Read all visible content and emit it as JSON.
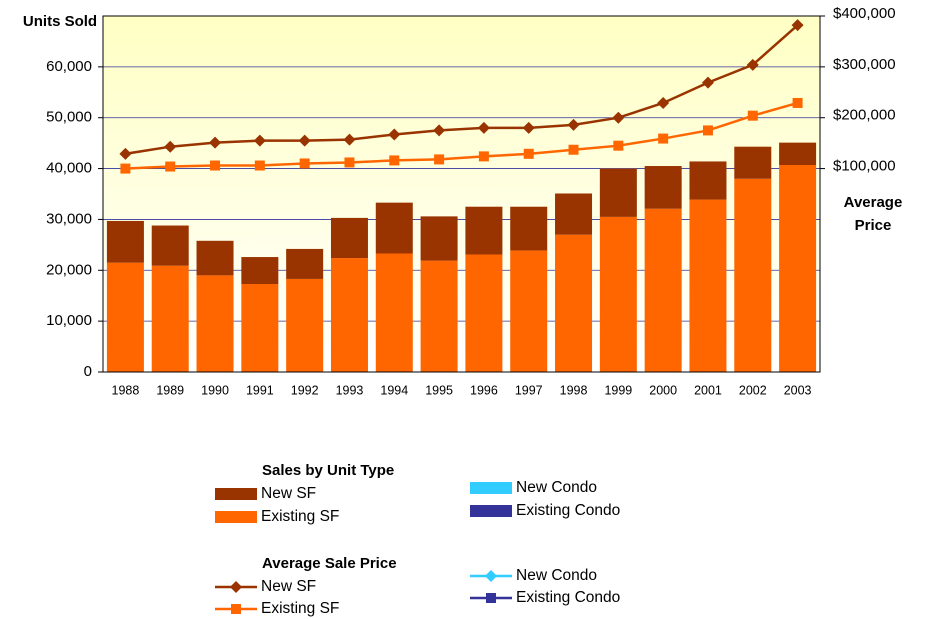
{
  "chart_data": {
    "type": "bar_line",
    "y_label": "Units Sold",
    "y2_label_lines": [
      "Average",
      "Price"
    ],
    "bar_legend_title": "Sales by Unit Type",
    "line_legend_title": "Average Sale Price",
    "categories": [
      "1988",
      "1989",
      "1990",
      "1991",
      "1992",
      "1993",
      "1994",
      "1995",
      "1996",
      "1997",
      "1998",
      "1999",
      "2000",
      "2001",
      "2002",
      "2003"
    ],
    "ylim": [
      0,
      70000
    ],
    "yticks": [
      {
        "value": 0,
        "label": "0"
      },
      {
        "value": 10000,
        "label": "10,000"
      },
      {
        "value": 20000,
        "label": "20,000"
      },
      {
        "value": 30000,
        "label": "30,000"
      },
      {
        "value": 40000,
        "label": "40,000"
      },
      {
        "value": 50000,
        "label": "50,000"
      },
      {
        "value": 60000,
        "label": "60,000"
      }
    ],
    "y2lim": [
      -300000,
      400000
    ],
    "y2ticks": [
      {
        "value": 100000,
        "label": "$100,000"
      },
      {
        "value": 200000,
        "label": "$200,000"
      },
      {
        "value": 300000,
        "label": "$300,000"
      },
      {
        "value": 400000,
        "label": "$400,000"
      }
    ],
    "grid": true,
    "series": [
      {
        "name": "New SF",
        "kind": "bar",
        "color": "#993300",
        "values": [
          8200,
          7900,
          6800,
          5300,
          5900,
          7900,
          10000,
          8700,
          9400,
          8600,
          8100,
          9500,
          8400,
          7500,
          6300,
          4400
        ]
      },
      {
        "name": "Existing SF",
        "kind": "bar",
        "color": "#ff6600",
        "values": [
          21500,
          20900,
          19000,
          17300,
          18300,
          22400,
          23300,
          21900,
          23100,
          23900,
          27000,
          30500,
          32100,
          33900,
          38000,
          40700
        ]
      },
      {
        "name": "New Condo",
        "kind": "bar",
        "color": "#33ccff",
        "values": [
          null,
          null,
          null,
          null,
          null,
          null,
          null,
          null,
          null,
          null,
          null,
          null,
          null,
          null,
          null,
          null
        ]
      },
      {
        "name": "Existing Condo",
        "kind": "bar",
        "color": "#333399",
        "values": [
          null,
          null,
          null,
          null,
          null,
          null,
          null,
          null,
          null,
          null,
          null,
          null,
          null,
          null,
          null,
          null
        ]
      },
      {
        "name": "New SF",
        "kind": "line",
        "axis": "y2",
        "marker": "diamond",
        "color": "#993300",
        "values": [
          129000,
          143000,
          151000,
          155000,
          155000,
          157000,
          167000,
          175000,
          180000,
          180000,
          186000,
          200000,
          229000,
          269000,
          304000,
          382000
        ]
      },
      {
        "name": "Existing SF",
        "kind": "line",
        "axis": "y2",
        "marker": "square",
        "color": "#ff6600",
        "values": [
          100000,
          104000,
          106000,
          106000,
          110000,
          112000,
          116000,
          118000,
          124000,
          129000,
          137000,
          145000,
          159000,
          175000,
          204000,
          229000
        ]
      },
      {
        "name": "New Condo",
        "kind": "line",
        "axis": "y2",
        "marker": "diamond",
        "color": "#33ccff",
        "values": [
          null,
          null,
          null,
          null,
          null,
          null,
          null,
          null,
          null,
          null,
          null,
          null,
          null,
          null,
          null,
          null
        ]
      },
      {
        "name": "Existing Condo",
        "kind": "line",
        "axis": "y2",
        "marker": "square",
        "color": "#333399",
        "values": [
          null,
          null,
          null,
          null,
          null,
          null,
          null,
          null,
          null,
          null,
          null,
          null,
          null,
          null,
          null,
          null
        ]
      }
    ]
  }
}
